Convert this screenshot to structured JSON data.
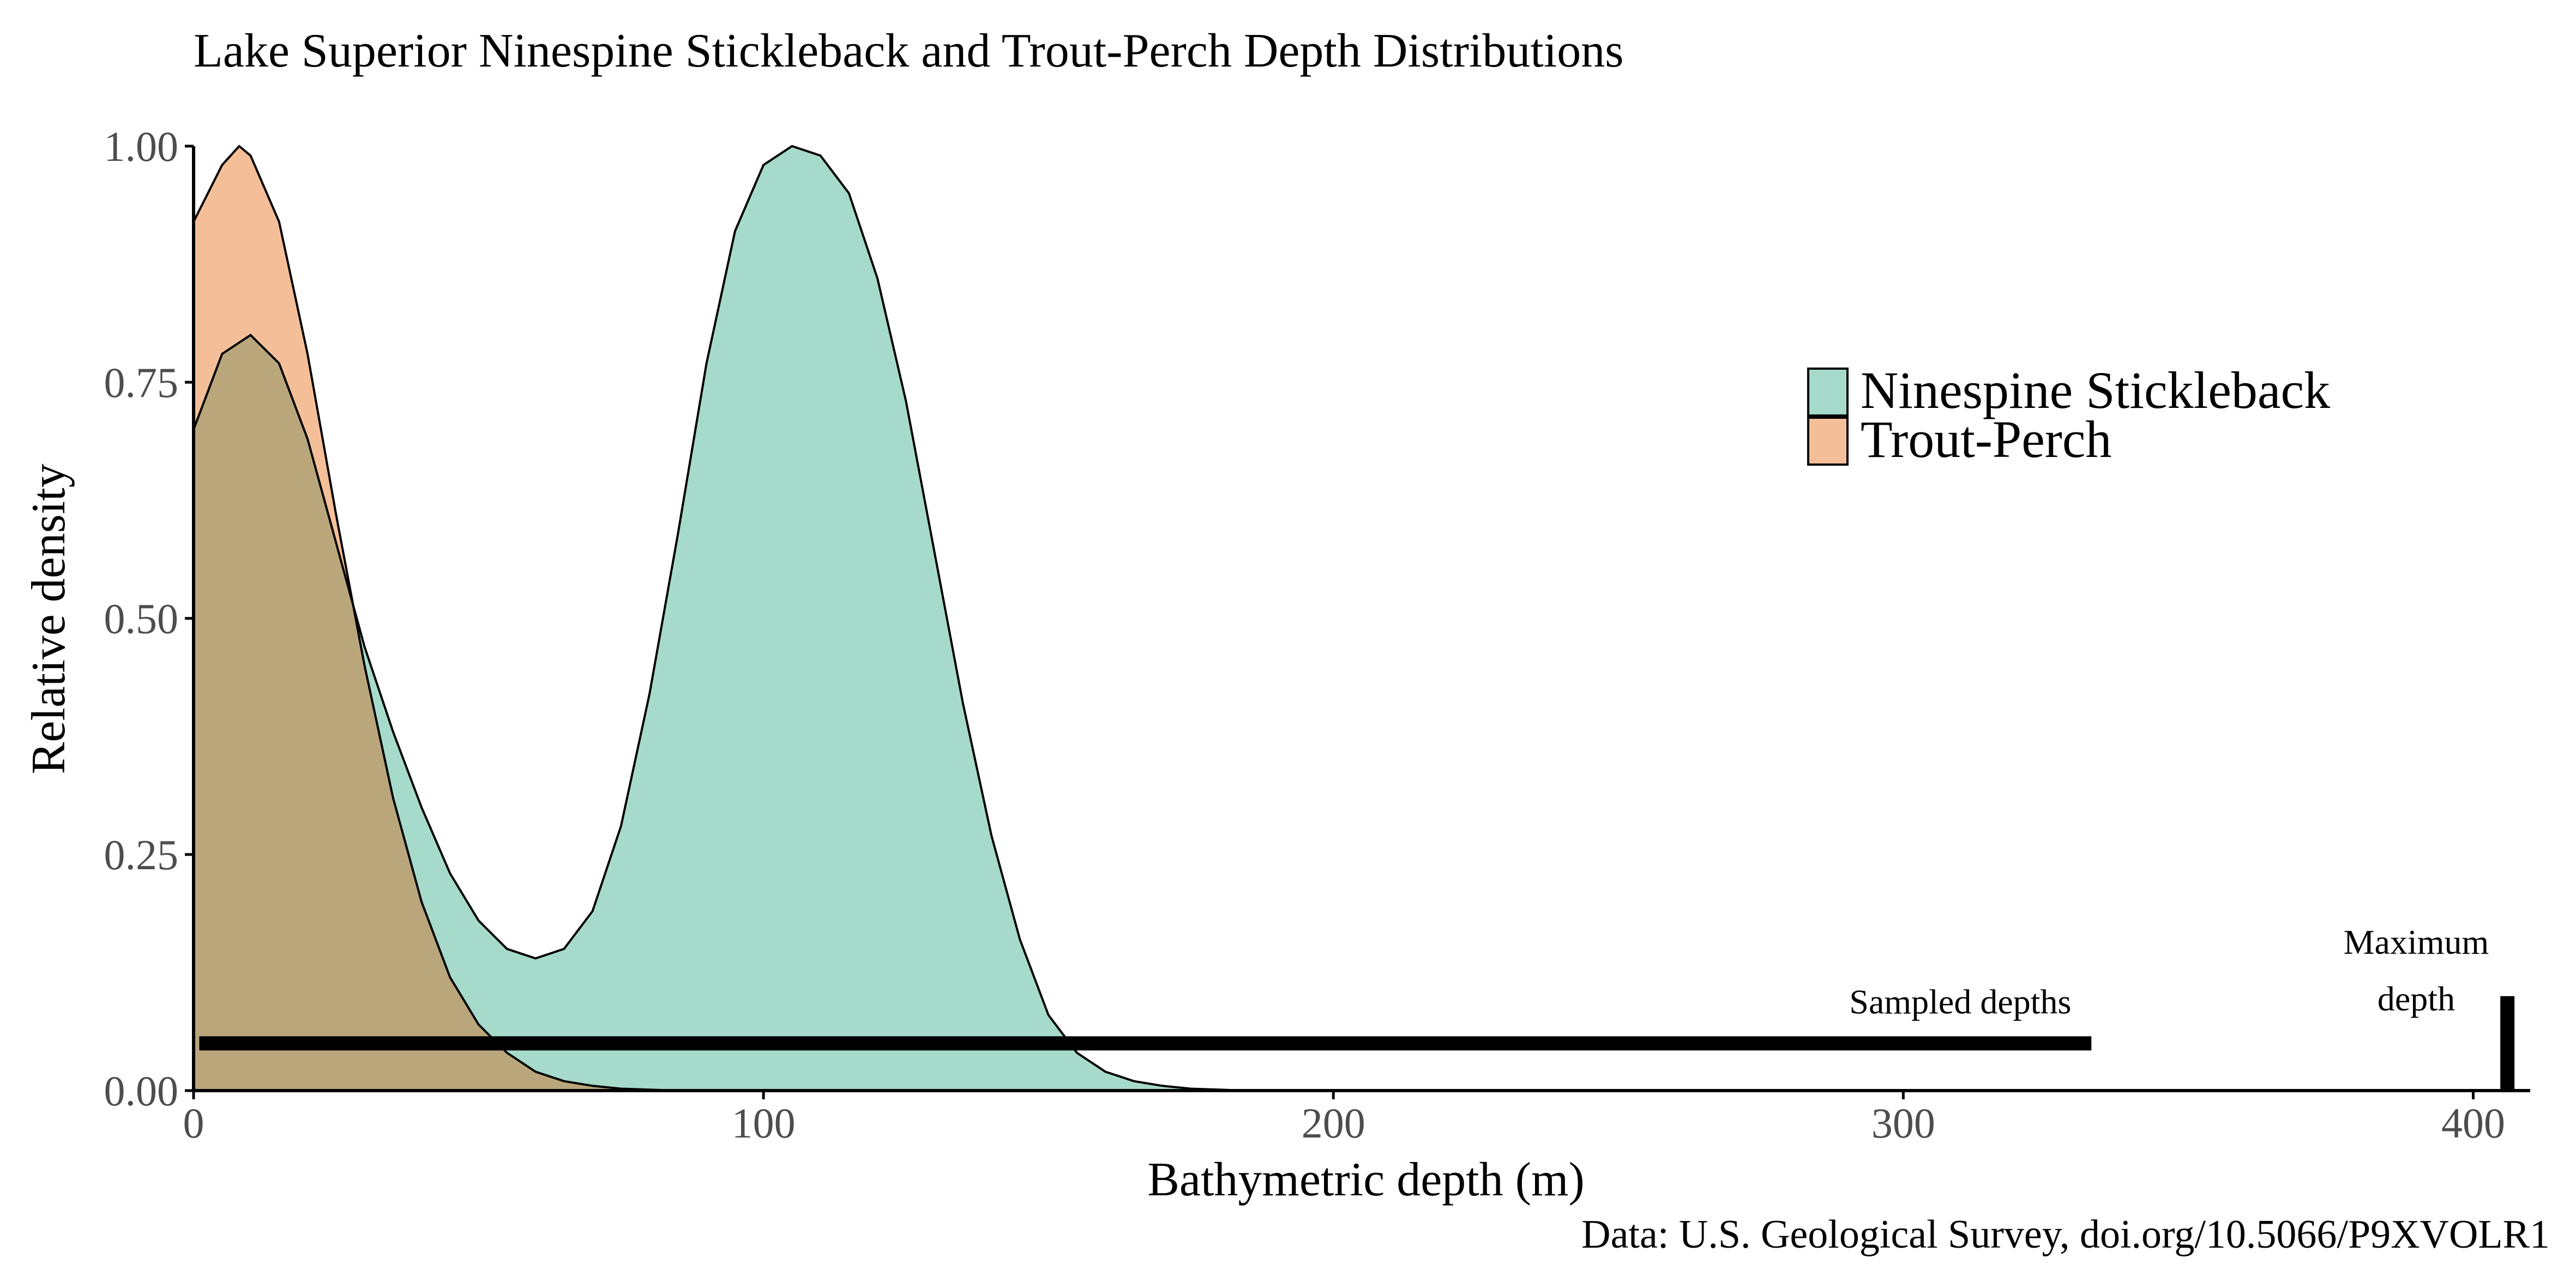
{
  "chart_data": {
    "type": "area",
    "title": "Lake Superior Ninespine Stickleback and Trout-Perch Depth Distributions",
    "xlabel": "Bathymetric depth (m)",
    "ylabel": "Relative density",
    "xlim": [
      0,
      410
    ],
    "ylim": [
      0,
      1
    ],
    "x_ticks": [
      0,
      100,
      200,
      300,
      400
    ],
    "x_tick_labels": [
      "0",
      "100",
      "200",
      "300",
      "400"
    ],
    "y_ticks": [
      0,
      0.25,
      0.5,
      0.75,
      1.0
    ],
    "y_tick_labels": [
      "0.00",
      "0.25",
      "0.50",
      "0.75",
      "1.00"
    ],
    "grid": false,
    "legend_position": "top-right",
    "series": [
      {
        "name": "Ninespine Stickleback",
        "color": "#a6dacb",
        "x": [
          0,
          5,
          10,
          15,
          20,
          25,
          30,
          35,
          40,
          45,
          50,
          55,
          60,
          65,
          70,
          75,
          80,
          85,
          90,
          95,
          100,
          105,
          110,
          115,
          120,
          125,
          130,
          135,
          140,
          145,
          150,
          155,
          160,
          165,
          170,
          175,
          180,
          185,
          190,
          195,
          200
        ],
        "values": [
          0.7,
          0.78,
          0.8,
          0.77,
          0.69,
          0.58,
          0.47,
          0.38,
          0.3,
          0.23,
          0.18,
          0.15,
          0.14,
          0.15,
          0.19,
          0.28,
          0.42,
          0.59,
          0.77,
          0.91,
          0.98,
          1.0,
          0.99,
          0.95,
          0.86,
          0.73,
          0.57,
          0.41,
          0.27,
          0.16,
          0.08,
          0.04,
          0.02,
          0.01,
          0.005,
          0.002,
          0.001,
          0.0,
          0.0,
          0.0,
          0.0
        ]
      },
      {
        "name": "Trout-Perch",
        "color": "#f4bf98",
        "x": [
          0,
          5,
          8,
          10,
          15,
          20,
          25,
          30,
          35,
          40,
          45,
          50,
          55,
          60,
          65,
          70,
          75,
          80,
          85,
          90,
          95
        ],
        "values": [
          0.92,
          0.98,
          1.0,
          0.99,
          0.92,
          0.78,
          0.61,
          0.45,
          0.31,
          0.2,
          0.12,
          0.07,
          0.04,
          0.02,
          0.01,
          0.005,
          0.002,
          0.001,
          0.0,
          0.0,
          0.0
        ]
      }
    ],
    "overlap_color": "#b9a67b",
    "annotations": [
      {
        "name": "sampled-depths",
        "label": "Sampled depths",
        "x_start": 1,
        "x_end": 333,
        "y": 0.05
      },
      {
        "name": "maximum-depth",
        "label_line1": "Maximum",
        "label_line2": "depth",
        "x": 406,
        "y_top": 0.1
      }
    ],
    "caption": "Data: U.S. Geological Survey, doi.org/10.5066/P9XVOLR1"
  }
}
